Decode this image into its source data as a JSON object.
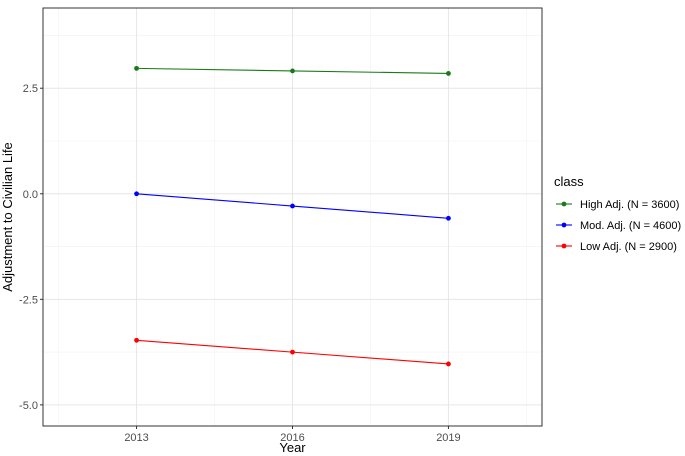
{
  "chart_data": {
    "type": "line",
    "x": [
      2013,
      2016,
      2019
    ],
    "x_tick_labels": [
      "2013",
      "2016",
      "2019"
    ],
    "xlim": [
      2011.2,
      2020.8
    ],
    "y_ticks": [
      2.5,
      0.0,
      -2.5,
      -5.0
    ],
    "y_tick_labels": [
      "2.5",
      "0.0",
      "-2.5",
      "-5.0"
    ],
    "ylim": [
      -5.5,
      4.4
    ],
    "xlabel": "Year",
    "ylabel": "Adjustment to Civilian Life",
    "grid": true,
    "legend": {
      "title": "class",
      "placement": "right"
    },
    "series": [
      {
        "name": "High Adj. (N = 3600)",
        "color": "#1a7a1a",
        "values": [
          2.97,
          2.91,
          2.85
        ]
      },
      {
        "name": "Mod. Adj. (N = 4600)",
        "color": "#0000ff",
        "values": [
          0.0,
          -0.29,
          -0.58
        ]
      },
      {
        "name": "Low Adj. (N = 2900)",
        "color": "#ff0000",
        "values": [
          -3.47,
          -3.75,
          -4.03
        ]
      }
    ]
  }
}
